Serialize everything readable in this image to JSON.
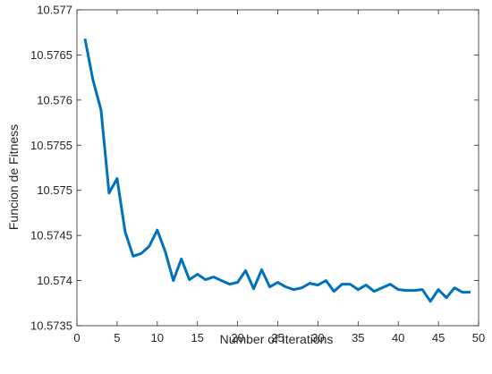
{
  "chart_data": {
    "type": "line",
    "title": "",
    "xlabel": "Number of Iterations",
    "ylabel": "Funcion de Fitness",
    "xlim": [
      0,
      50
    ],
    "ylim": [
      10.5735,
      10.577
    ],
    "x_ticks": [
      0,
      5,
      10,
      15,
      20,
      25,
      30,
      35,
      40,
      45,
      50
    ],
    "y_ticks": [
      10.5735,
      10.574,
      10.5745,
      10.575,
      10.5755,
      10.576,
      10.5765,
      10.577
    ],
    "x_tick_labels": [
      "0",
      "5",
      "10",
      "15",
      "20",
      "25",
      "30",
      "35",
      "40",
      "45",
      "50"
    ],
    "y_tick_labels": [
      "10.5735",
      "10.574",
      "10.5745",
      "10.575",
      "10.5755",
      "10.576",
      "10.5765",
      "10.577"
    ],
    "grid": false,
    "box": true,
    "line_color": "#0072BD",
    "series": [
      {
        "x": [
          1,
          2,
          3,
          4,
          5,
          6,
          7,
          8,
          9,
          10,
          11,
          12,
          13,
          14,
          15,
          16,
          17,
          18,
          19,
          20,
          21,
          22,
          23,
          24,
          25,
          26,
          27,
          28,
          29,
          30,
          31,
          32,
          33,
          34,
          35,
          36,
          37,
          38,
          39,
          40,
          41,
          42,
          43,
          44,
          45,
          46,
          47,
          48,
          49
        ],
        "values": [
          10.57668,
          10.57622,
          10.57589,
          10.57497,
          10.57513,
          10.57454,
          10.57427,
          10.5743,
          10.57438,
          10.57456,
          10.57432,
          10.574,
          10.57424,
          10.57401,
          10.57407,
          10.57401,
          10.57404,
          10.574,
          10.57396,
          10.57398,
          10.57411,
          10.57391,
          10.57412,
          10.57393,
          10.57398,
          10.57393,
          10.5739,
          10.57392,
          10.57397,
          10.57395,
          10.574,
          10.57388,
          10.57396,
          10.57396,
          10.5739,
          10.57395,
          10.57388,
          10.57392,
          10.57396,
          10.5739,
          10.57389,
          10.57389,
          10.5739,
          10.57377,
          10.5739,
          10.57381,
          10.57392,
          10.57387,
          10.57387
        ]
      }
    ]
  }
}
